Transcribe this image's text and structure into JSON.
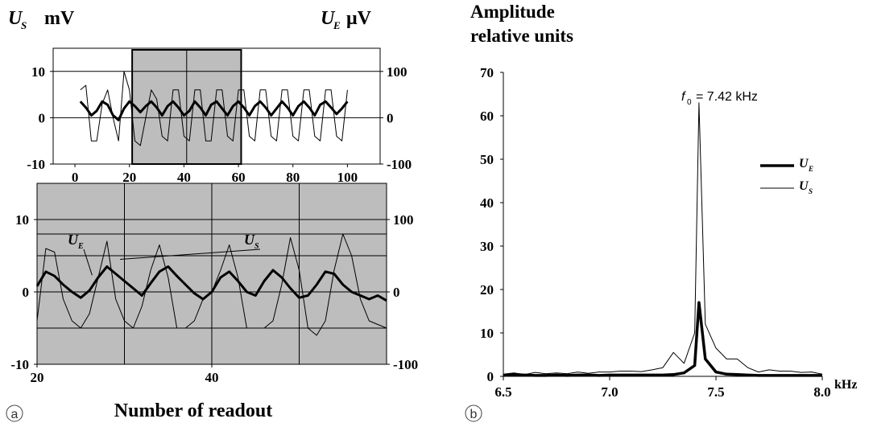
{
  "panel_a": {
    "label": "a",
    "left_unit": {
      "symbol": "U",
      "subscript": "S",
      "unit": "mV"
    },
    "right_unit": {
      "symbol": "U",
      "subscript": "E",
      "unit": "μV"
    },
    "xlabel": "Number of readout"
  },
  "panel_b": {
    "label": "b",
    "ylabel_line1": "Amplitude",
    "ylabel_line2": "relative units",
    "xunit": "kHz",
    "annotation": {
      "symbol": "f",
      "subscript": "0",
      "text": "= 7.42 kHz"
    }
  },
  "chart_data": [
    {
      "type": "line",
      "name": "panel a top overview",
      "x": [
        2,
        4,
        6,
        8,
        10,
        12,
        14,
        16,
        18,
        20,
        22,
        24,
        26,
        28,
        30,
        32,
        34,
        36,
        38,
        40,
        42,
        44,
        46,
        48,
        50,
        52,
        54,
        56,
        58,
        60,
        62,
        64,
        66,
        68,
        70,
        72,
        74,
        76,
        78,
        80,
        82,
        84,
        86,
        88,
        90,
        92,
        94,
        96,
        98,
        100
      ],
      "series": [
        {
          "name": "U_E",
          "axis": "right",
          "values": [
            35,
            22,
            5,
            15,
            35,
            28,
            5,
            -5,
            20,
            35,
            25,
            12,
            25,
            35,
            22,
            5,
            25,
            35,
            22,
            5,
            15,
            35,
            22,
            5,
            28,
            35,
            20,
            5,
            25,
            35,
            22,
            5,
            25,
            35,
            22,
            5,
            20,
            35,
            22,
            5,
            25,
            35,
            22,
            5,
            28,
            35,
            22,
            8,
            20,
            35
          ]
        },
        {
          "name": "U_S",
          "axis": "left",
          "values": [
            6,
            7,
            -5,
            -5,
            3,
            6,
            0,
            -5,
            10,
            6,
            -5,
            -6,
            0,
            6,
            4,
            -4,
            -5,
            6,
            6,
            -4,
            -5,
            6,
            6,
            -5,
            -5,
            6,
            6,
            -4,
            -5,
            6,
            6,
            -4,
            -5,
            6,
            6,
            -4,
            -5,
            6,
            6,
            -4,
            -5,
            6,
            6,
            -4,
            -5,
            6,
            6,
            -4,
            -5,
            6
          ]
        }
      ],
      "left_axis": {
        "ylim": [
          -10,
          15
        ],
        "ticks": [
          -10,
          0,
          10
        ]
      },
      "right_axis": {
        "ylim": [
          -100,
          150
        ],
        "ticks": [
          -100,
          0,
          100
        ],
        "tick_labels": [
          "-100",
          "0",
          "100"
        ]
      },
      "xlim": [
        -8,
        112
      ],
      "xticks": [
        0,
        20,
        40,
        60,
        80,
        100
      ],
      "highlight_range": [
        21,
        61
      ],
      "grid": true
    },
    {
      "type": "line",
      "name": "panel a zoomed",
      "x": [
        20,
        21,
        22,
        23,
        24,
        25,
        26,
        27,
        28,
        29,
        30,
        31,
        32,
        33,
        34,
        35,
        36,
        37,
        38,
        39,
        40,
        41,
        42,
        43,
        44,
        45,
        46,
        47,
        48,
        49,
        50,
        51,
        52,
        53,
        54,
        55,
        56,
        57,
        58,
        59,
        60
      ],
      "series": [
        {
          "name": "U_E",
          "axis": "right",
          "values": [
            8,
            28,
            22,
            10,
            0,
            -8,
            2,
            20,
            35,
            25,
            15,
            5,
            -5,
            12,
            28,
            35,
            22,
            10,
            -2,
            -10,
            0,
            20,
            28,
            15,
            0,
            -5,
            15,
            30,
            20,
            5,
            -8,
            -5,
            10,
            28,
            25,
            10,
            0,
            -5,
            -10,
            -5,
            -12
          ]
        },
        {
          "name": "U_S",
          "axis": "left",
          "values": [
            -4,
            6,
            5.5,
            -1,
            -4,
            -5,
            -3,
            2,
            7,
            -1,
            -4,
            -5,
            -2,
            3,
            6.5,
            2,
            -5,
            -5,
            -4,
            -1,
            0,
            3,
            6.5,
            2,
            -5,
            -5,
            -5,
            -4,
            1,
            7.5,
            3,
            -5,
            -6,
            -4,
            3,
            8,
            5,
            -1,
            -4,
            -4.5,
            -5
          ]
        }
      ],
      "left_axis": {
        "ylim": [
          -10,
          15
        ],
        "ticks": [
          -10,
          0,
          10
        ]
      },
      "right_axis": {
        "ylim": [
          -100,
          150
        ],
        "ticks": [
          -100,
          0,
          100
        ],
        "tick_labels": [
          "-100",
          "0",
          "100"
        ]
      },
      "xlim": [
        20,
        60
      ],
      "xticks": [
        20,
        40
      ],
      "series_labels": [
        {
          "name": "U_E",
          "symbol": "U",
          "subscript": "E"
        },
        {
          "name": "U_S",
          "symbol": "U",
          "subscript": "S"
        }
      ],
      "grid": true
    },
    {
      "type": "line",
      "name": "panel b spectrum",
      "x": [
        6.5,
        6.55,
        6.6,
        6.65,
        6.7,
        6.75,
        6.8,
        6.85,
        6.9,
        6.95,
        7.0,
        7.05,
        7.1,
        7.15,
        7.2,
        7.25,
        7.3,
        7.35,
        7.4,
        7.42,
        7.45,
        7.5,
        7.55,
        7.6,
        7.65,
        7.7,
        7.75,
        7.8,
        7.85,
        7.9,
        7.95,
        8.0
      ],
      "series": [
        {
          "name": "U_E",
          "values": [
            0.2,
            0.4,
            0.3,
            0.2,
            0.2,
            0.3,
            0.2,
            0.3,
            0.3,
            0.2,
            0.3,
            0.3,
            0.3,
            0.3,
            0.3,
            0.3,
            0.4,
            0.8,
            2.5,
            17,
            4,
            1,
            0.5,
            0.4,
            0.3,
            0.2,
            0.2,
            0.2,
            0.2,
            0.2,
            0.2,
            0.2
          ]
        },
        {
          "name": "U_S",
          "values": [
            0.5,
            0.8,
            0.4,
            0.9,
            0.6,
            0.8,
            0.6,
            1,
            0.7,
            1,
            1,
            1.2,
            1.2,
            1.1,
            1.5,
            2,
            5.5,
            3,
            10,
            63,
            12,
            6.5,
            4,
            4,
            2,
            1,
            1.5,
            1.2,
            1.2,
            0.9,
            1,
            0.5
          ]
        }
      ],
      "xlim": [
        6.5,
        8.0
      ],
      "xticks": [
        6.5,
        7.0,
        7.5,
        8.0
      ],
      "xtick_labels": [
        "6.5",
        "7.0",
        "7.5",
        "8.0"
      ],
      "ylim": [
        0,
        70
      ],
      "yticks": [
        0,
        10,
        20,
        30,
        40,
        50,
        60,
        70
      ],
      "legend": [
        {
          "name": "U_E",
          "symbol": "U",
          "subscript": "E"
        },
        {
          "name": "U_S",
          "symbol": "U",
          "subscript": "S"
        }
      ],
      "legend_position": "right",
      "grid": false
    }
  ]
}
